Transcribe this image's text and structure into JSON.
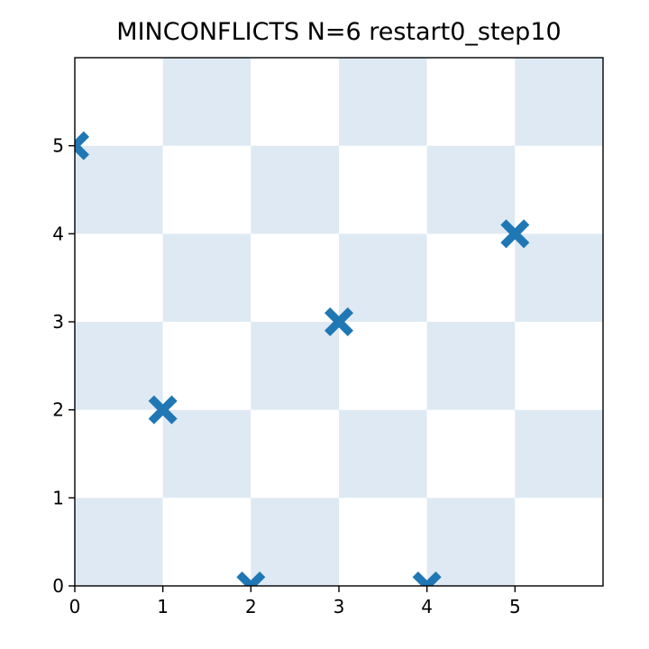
{
  "chart_data": {
    "type": "scatter",
    "title": "MINCONFLICTS N=6 restart0_step10",
    "board_size": 6,
    "board_colors": {
      "dark": "#dee9f3",
      "light": "#ffffff"
    },
    "marker": "X",
    "marker_color": "#1f77b4",
    "xlim": [
      0,
      6
    ],
    "ylim": [
      0,
      6
    ],
    "xticks": [
      0,
      1,
      2,
      3,
      4,
      5
    ],
    "yticks": [
      0,
      1,
      2,
      3,
      4,
      5
    ],
    "grid": false,
    "xlabel": "",
    "ylabel": "",
    "series": [
      {
        "points": [
          {
            "x": 0,
            "y": 5
          },
          {
            "x": 1,
            "y": 2
          },
          {
            "x": 2,
            "y": 0
          },
          {
            "x": 3,
            "y": 3
          },
          {
            "x": 4,
            "y": 0
          },
          {
            "x": 5,
            "y": 4
          }
        ]
      }
    ]
  }
}
